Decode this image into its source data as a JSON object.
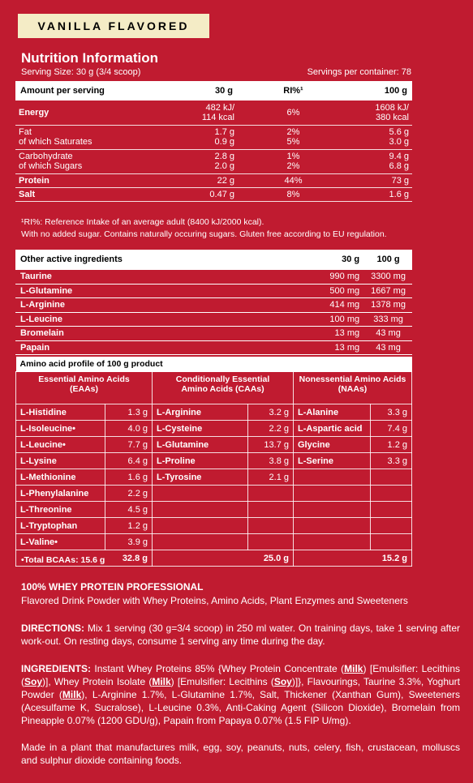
{
  "badge": "VANILLA FLAVORED",
  "title": "Nutrition Information",
  "serving_size": "Serving Size: 30 g (3/4 scoop)",
  "servings_per": "Servings per container: 78",
  "nutrition": {
    "headers": [
      "Amount per serving",
      "30 g",
      "RI%¹",
      "100 g"
    ],
    "rows": [
      [
        "Energy",
        "482 kJ/\n114 kcal",
        "6%",
        "1608 kJ/\n380 kcal"
      ],
      [
        "Fat\n  of which Saturates",
        "1.7 g\n0.9 g",
        "2%\n5%",
        "5.6 g\n3.0 g"
      ],
      [
        "Carbohydrate\n  of which Sugars",
        "2.8 g\n2.0 g",
        "1%\n2%",
        "9.4 g\n6.8 g"
      ],
      [
        "Protein",
        "22 g",
        "44%",
        "73 g"
      ],
      [
        "Salt",
        "0.47 g",
        "8%",
        "1.6 g"
      ]
    ]
  },
  "notes": [
    "¹RI%: Reference Intake of an average adult (8400 kJ/2000 kcal).",
    "With no added sugar. Contains naturally occuring sugars. Gluten free according to EU regulation."
  ],
  "other": {
    "headers": [
      "Other active ingredients",
      "30 g",
      "100 g"
    ],
    "rows": [
      [
        "Taurine",
        "990 mg",
        "3300 mg"
      ],
      [
        "L-Glutamine",
        "500 mg",
        "1667 mg"
      ],
      [
        "L-Arginine",
        "414 mg",
        "1378 mg"
      ],
      [
        "L-Leucine",
        "100 mg",
        "333 mg"
      ],
      [
        "Bromelain",
        "13 mg",
        "43 mg"
      ],
      [
        "Papain",
        "13 mg",
        "43 mg"
      ]
    ]
  },
  "amino": {
    "title": "Amino acid profile of 100 g product",
    "groups": [
      "Essential Amino Acids\n(EAAs)",
      "Conditionally Essential\nAmino Acids (CAAs)",
      "Nonessential Amino Acids\n(NAAs)"
    ],
    "rows": [
      [
        "L-Histidine",
        "1.3 g",
        "L-Arginine",
        "3.2 g",
        "L-Alanine",
        "3.3 g"
      ],
      [
        "L-Isoleucine•",
        "4.0 g",
        "L-Cysteine",
        "2.2 g",
        "L-Aspartic acid",
        "7.4 g"
      ],
      [
        "L-Leucine•",
        "7.7 g",
        "L-Glutamine",
        "13.7 g",
        "Glycine",
        "1.2 g"
      ],
      [
        "L-Lysine",
        "6.4 g",
        "L-Proline",
        "3.8 g",
        "L-Serine",
        "3.3 g"
      ],
      [
        "L-Methionine",
        "1.6 g",
        "L-Tyrosine",
        "2.1 g",
        "",
        ""
      ],
      [
        "L-Phenylalanine",
        "2.2 g",
        "",
        "",
        "",
        ""
      ],
      [
        "L-Threonine",
        "4.5 g",
        "",
        "",
        "",
        ""
      ],
      [
        "L-Tryptophan",
        "1.2 g",
        "",
        "",
        "",
        ""
      ],
      [
        "L-Valine•",
        "3.9 g",
        "",
        "",
        "",
        ""
      ]
    ],
    "totals": [
      "32.8 g",
      "25.0 g",
      "15.2 g"
    ],
    "bcaa": "•Total BCAAs: 15.6 g"
  },
  "product_name": "100% WHEY PROTEIN PROFESSIONAL",
  "product_desc": "Flavored Drink Powder with Whey Proteins, Amino Acids, Plant Enzymes and Sweeteners",
  "directions_label": "DIRECTIONS:",
  "directions": " Mix 1 serving (30 g=3/4 scoop) in 250 ml water. On training days, take 1 serving after work-out. On resting days, consume 1 serving any time  during the day.",
  "ingredients": {
    "label": "INGREDIENTS:",
    "t1": " Instant Whey Proteins 85% {Whey Protein Concentrate (",
    "milk1": "Milk",
    "t2": ") [Emulsifier: Lecithins (",
    "soy1": "Soy",
    "t3": ")], Whey Protein Isolate (",
    "milk2": "Milk",
    "t4": ") [Emulsifier: Lecithins (",
    "soy2": "Soy",
    "t5": ")]}, Flavourings, Taurine 3.3%, Yoghurt Powder (",
    "milk3": "Milk",
    "t6": "), L-Arginine 1.7%, L-Glutamine 1.7%, Salt, Thickener (Xanthan Gum), Sweeteners (Acesulfame K, Sucralose), L-Leucine 0.3%,  Anti-Caking Agent (Silicon Dioxide), Bromelain from Pineapple 0.07% (1200 GDU/g), Papain from Papaya 0.07% (1.5 FIP U/mg)."
  },
  "allergen": "Made in a plant that manufactures milk, egg, soy, peanuts, nuts, celery, fish, crustacean, molluscs and sulphur dioxide containing foods."
}
